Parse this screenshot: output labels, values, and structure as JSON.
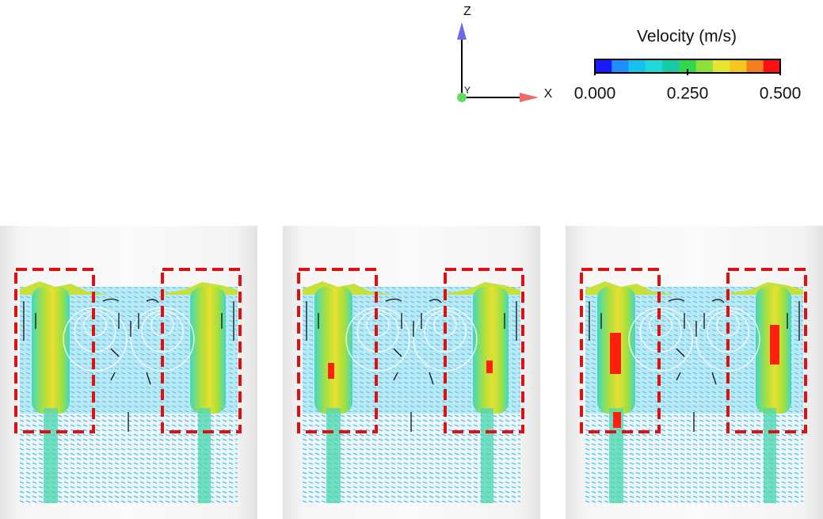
{
  "axes_triad": {
    "z_label": "Z",
    "x_label": "X",
    "y_label": "Y"
  },
  "colorbar": {
    "title": "Velocity (m/s)",
    "lim": [
      0,
      0.5
    ],
    "ticks": [
      {
        "value": 0,
        "label": "0.000"
      },
      {
        "value": 0.25,
        "label": "0.250"
      },
      {
        "value": 0.5,
        "label": "0.500"
      }
    ],
    "colors": [
      "#1a1aff",
      "#1f8fff",
      "#19c0ee",
      "#20d8d8",
      "#19c9a8",
      "#2fd84f",
      "#8fe03a",
      "#e6e632",
      "#f2c81e",
      "#f08020",
      "#ff1010"
    ]
  }
}
